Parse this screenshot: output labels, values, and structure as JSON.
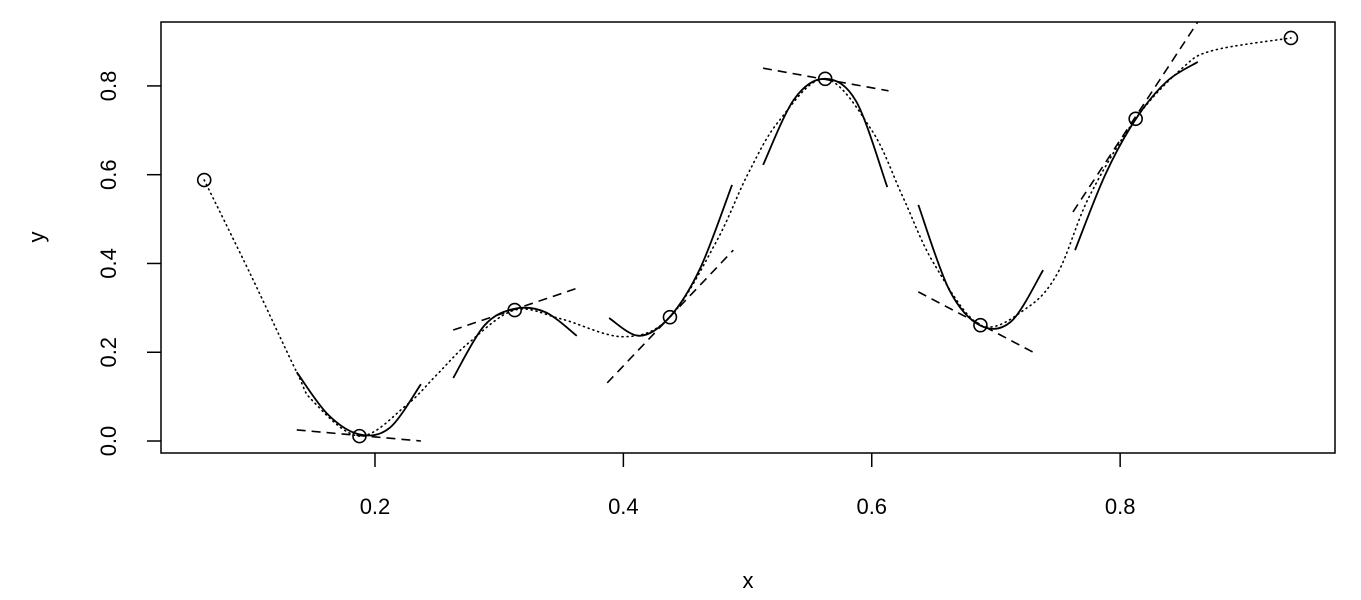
{
  "chart_data": {
    "type": "scatter",
    "x": [
      0.0625,
      0.1875,
      0.3125,
      0.4375,
      0.5625,
      0.6875,
      0.8125,
      0.9375
    ],
    "values": [
      0.588,
      0.011,
      0.295,
      0.279,
      0.816,
      0.261,
      0.726,
      0.908
    ],
    "curve": {
      "x": [
        0.0625,
        0.1,
        0.137,
        0.15,
        0.1875,
        0.225,
        0.25,
        0.275,
        0.3125,
        0.35,
        0.4,
        0.4375,
        0.475,
        0.5,
        0.525,
        0.5625,
        0.6,
        0.625,
        0.65,
        0.6875,
        0.725,
        0.75,
        0.775,
        0.8125,
        0.85,
        0.875,
        0.9375
      ],
      "values": [
        0.588,
        0.374,
        0.155,
        0.09,
        0.011,
        0.08,
        0.15,
        0.22,
        0.295,
        0.275,
        0.235,
        0.279,
        0.45,
        0.6,
        0.72,
        0.816,
        0.7,
        0.55,
        0.4,
        0.261,
        0.3,
        0.38,
        0.55,
        0.726,
        0.84,
        0.88,
        0.908
      ]
    },
    "fits": [
      {
        "x": [
          0.137,
          0.162,
          0.1875,
          0.212,
          0.237
        ],
        "values": [
          0.155,
          0.06,
          0.015,
          0.03,
          0.128
        ]
      },
      {
        "x": [
          0.263,
          0.288,
          0.3125,
          0.3375,
          0.3625
        ],
        "values": [
          0.142,
          0.26,
          0.298,
          0.29,
          0.237
        ]
      },
      {
        "x": [
          0.3885,
          0.413,
          0.4375,
          0.462,
          0.4875
        ],
        "values": [
          0.277,
          0.237,
          0.28,
          0.39,
          0.577
        ]
      },
      {
        "x": [
          0.5125,
          0.5375,
          0.5625,
          0.5875,
          0.6125
        ],
        "values": [
          0.622,
          0.77,
          0.816,
          0.765,
          0.572
        ]
      },
      {
        "x": [
          0.6375,
          0.6625,
          0.6875,
          0.7125,
          0.738
        ],
        "values": [
          0.532,
          0.34,
          0.26,
          0.27,
          0.385
        ]
      },
      {
        "x": [
          0.7637,
          0.788,
          0.8125,
          0.8375,
          0.8625
        ],
        "values": [
          0.43,
          0.6,
          0.725,
          0.81,
          0.854
        ]
      }
    ],
    "tangents": [
      {
        "x": [
          0.137,
          0.237
        ],
        "values": [
          0.025,
          0.0
        ]
      },
      {
        "x": [
          0.263,
          0.3615
        ],
        "values": [
          0.25,
          0.343
        ]
      },
      {
        "x": [
          0.387,
          0.4885
        ],
        "values": [
          0.131,
          0.43
        ]
      },
      {
        "x": [
          0.5125,
          0.6135
        ],
        "values": [
          0.84,
          0.789
        ]
      },
      {
        "x": [
          0.6375,
          0.73
        ],
        "values": [
          0.336,
          0.2
        ]
      },
      {
        "x": [
          0.762,
          0.8625
        ],
        "values": [
          0.516,
          0.944
        ]
      }
    ],
    "xlim": [
      0.0277,
      0.973
    ],
    "ylim": [
      -0.027,
      0.944
    ],
    "xticks": [
      0.2,
      0.4,
      0.6,
      0.8
    ],
    "yticks": [
      {
        "value": 0,
        "label": "0.0"
      },
      0.2,
      0.4,
      0.6,
      0.8
    ],
    "xlabel": "x",
    "ylabel": "y"
  }
}
